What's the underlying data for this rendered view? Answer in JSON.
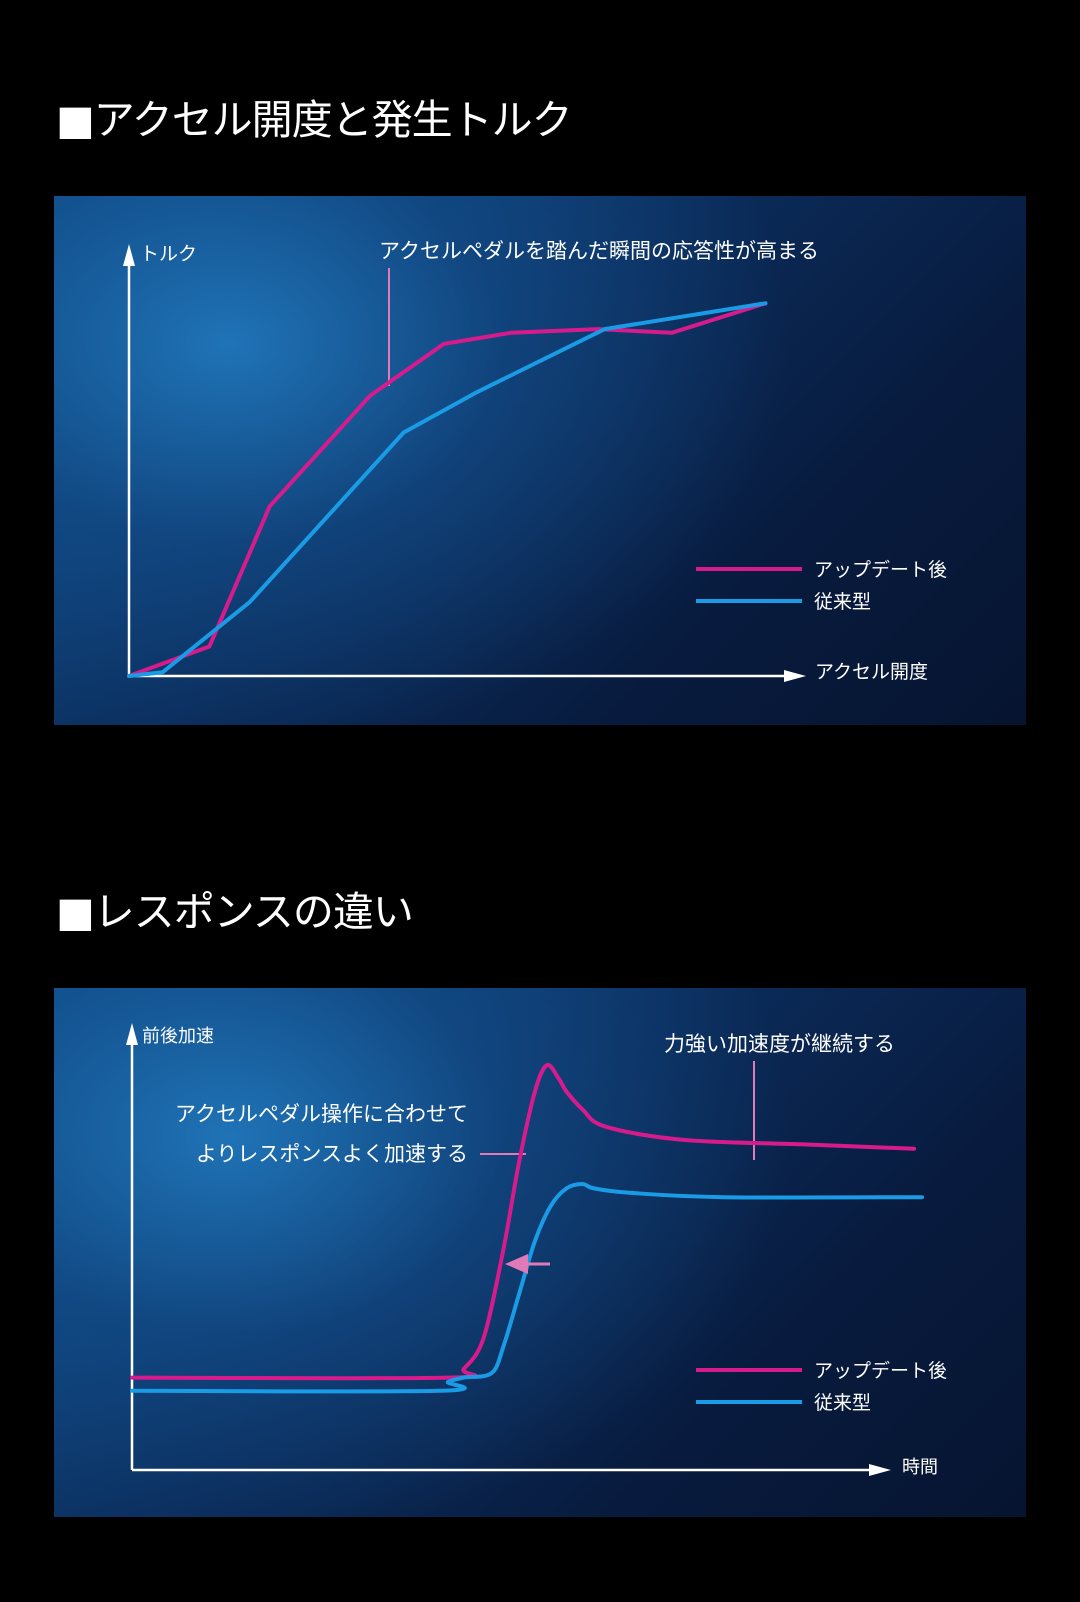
{
  "sections": [
    {
      "title": "■アクセル開度と発生トルク"
    },
    {
      "title": "■レスポンスの違い"
    }
  ],
  "colors": {
    "after_update": "#d81b8c",
    "conventional": "#1a9be6",
    "axis": "#ffffff",
    "annotation_line": "#e07ab8"
  },
  "chart_data": [
    {
      "type": "line",
      "xlabel": "アクセル開度",
      "ylabel": "トルク",
      "xlim": [
        0,
        100
      ],
      "ylim": [
        0,
        100
      ],
      "grid": false,
      "legend_placement": "bottom-right",
      "series": [
        {
          "name": "アップデート後",
          "x": [
            0,
            12,
            21,
            36,
            47,
            57,
            70,
            81,
            95
          ],
          "y": [
            0,
            8,
            46,
            76,
            90,
            93,
            94,
            93,
            101
          ]
        },
        {
          "name": "従来型",
          "x": [
            0,
            5,
            18,
            29,
            36,
            41,
            52,
            71,
            95
          ],
          "y": [
            0,
            1,
            20,
            42,
            56,
            66,
            77,
            94,
            101
          ]
        }
      ],
      "annotations": [
        {
          "text": "アクセルペダルを踏んだ瞬間の応答性が高まる",
          "x": 36.4,
          "y": 80
        }
      ]
    },
    {
      "type": "line",
      "xlabel": "時間",
      "ylabel": "前後加速",
      "xlim": [
        0,
        100
      ],
      "ylim": [
        0,
        100
      ],
      "grid": false,
      "legend_placement": "bottom-right",
      "series": [
        {
          "name": "アップデート後",
          "x": [
            0,
            40,
            42,
            44.5,
            47,
            49,
            51,
            52.5,
            54,
            55,
            57,
            60,
            70,
            85,
            99
          ],
          "y": [
            21,
            21,
            23,
            30,
            50,
            70,
            86,
            92,
            89,
            86,
            82,
            78,
            75,
            74,
            73
          ]
        },
        {
          "name": "従来型",
          "x": [
            0,
            39,
            40,
            42,
            45.5,
            47,
            49,
            51,
            53,
            55,
            57,
            58.5,
            63,
            75,
            100
          ],
          "y": [
            18,
            18,
            20,
            21,
            22,
            28,
            40,
            52,
            60,
            64,
            65,
            64,
            63,
            62,
            62
          ]
        }
      ],
      "annotations": [
        {
          "text": "アクセルペダル操作に合わせて",
          "x": 52,
          "y": 76
        },
        {
          "text": "よりレスポンスよく加速する",
          "x": 52,
          "y": 76
        },
        {
          "text": "力強い加速度が継続する",
          "x": 80,
          "y": 74
        }
      ]
    }
  ]
}
